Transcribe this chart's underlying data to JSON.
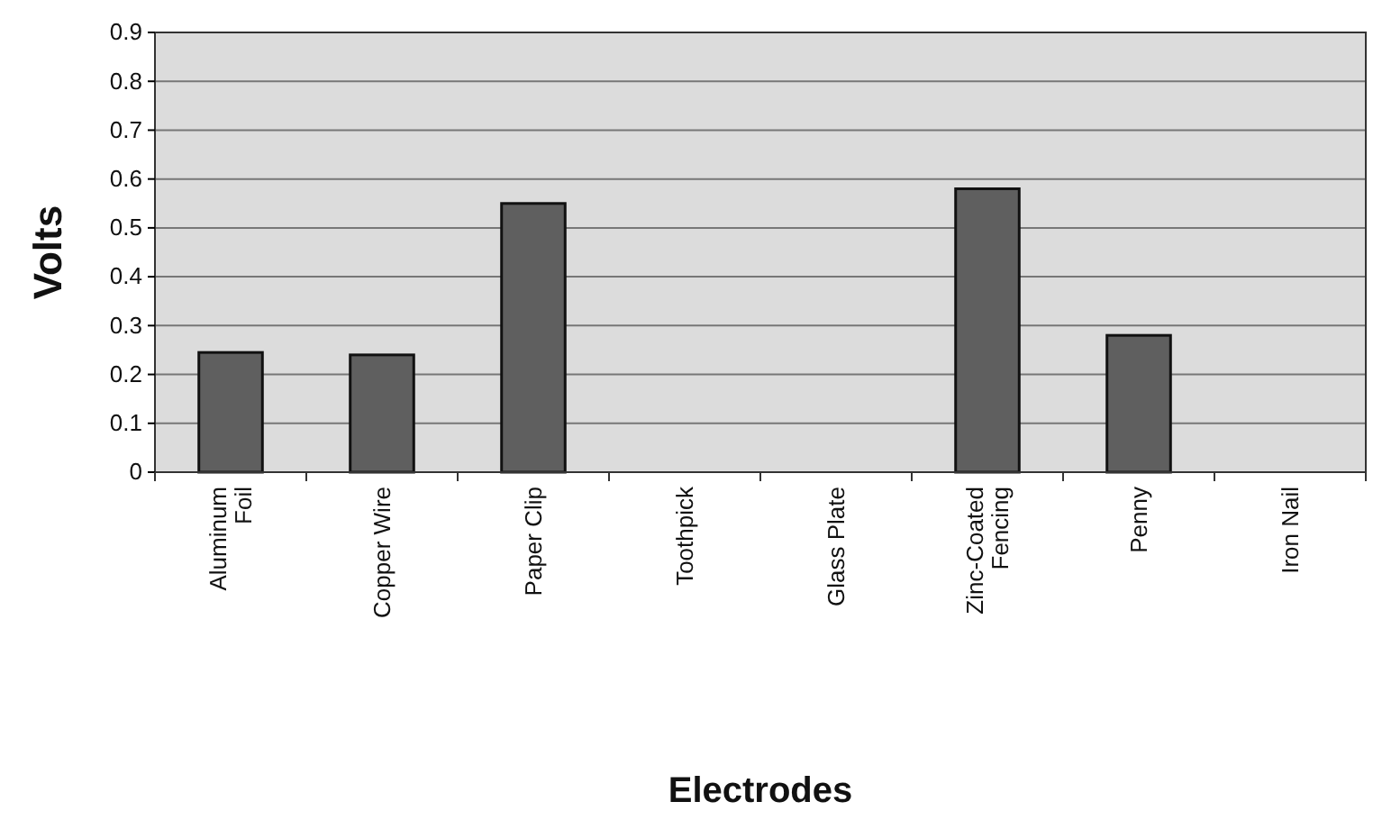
{
  "chart_data": {
    "type": "bar",
    "xlabel": "Electrodes",
    "ylabel": "Volts",
    "categories": [
      "Aluminum Foil",
      "Copper Wire",
      "Paper Clip",
      "Toothpick",
      "Glass Plate",
      "Zinc-Coated Fencing",
      "Penny",
      "Iron Nail"
    ],
    "values": [
      0.245,
      0.24,
      0.55,
      0,
      0,
      0.58,
      0.28,
      0
    ],
    "color": "#5f5f5f",
    "ylim": [
      0,
      0.9
    ],
    "yticks": [
      0,
      0.1,
      0.2,
      0.3,
      0.4,
      0.5,
      0.6,
      0.7,
      0.8,
      0.9
    ],
    "grid": "y"
  }
}
